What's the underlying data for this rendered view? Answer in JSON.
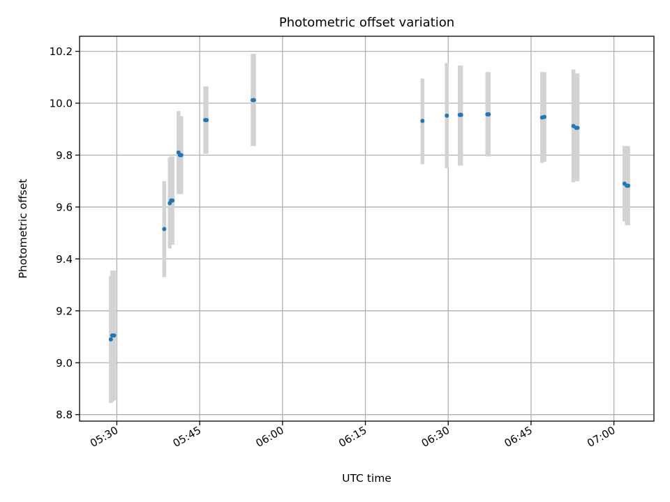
{
  "chart_data": {
    "type": "scatter",
    "title": "Photometric offset variation",
    "xlabel": "UTC time",
    "ylabel": "Photometric offset",
    "x_ticks": [
      "05:30",
      "05:45",
      "06:00",
      "06:15",
      "06:30",
      "06:45",
      "07:00"
    ],
    "y_ticks": [
      "8.8",
      "9.0",
      "9.2",
      "9.4",
      "9.6",
      "9.8",
      "10.0",
      "10.2"
    ],
    "xlim": [
      "05:23:15",
      "07:07:15"
    ],
    "ylim": [
      8.775,
      10.258
    ],
    "grid": true,
    "colors": {
      "point": "#1f77b4",
      "errorbar": "#d3d3d3"
    },
    "points": [
      {
        "x": "05:28:55",
        "y": 9.09,
        "ylow": 8.845,
        "yhigh": 9.335
      },
      {
        "x": "05:29:10",
        "y": 9.105,
        "ylow": 8.85,
        "yhigh": 9.355
      },
      {
        "x": "05:29:30",
        "y": 9.105,
        "ylow": 8.855,
        "yhigh": 9.355
      },
      {
        "x": "05:38:35",
        "y": 9.515,
        "ylow": 9.33,
        "yhigh": 9.7
      },
      {
        "x": "05:39:35",
        "y": 9.615,
        "ylow": 9.44,
        "yhigh": 9.79
      },
      {
        "x": "05:39:50",
        "y": 9.625,
        "ylow": 9.455,
        "yhigh": 9.795
      },
      {
        "x": "05:40:05",
        "y": 9.625,
        "ylow": 9.455,
        "yhigh": 9.795
      },
      {
        "x": "05:41:10",
        "y": 9.81,
        "ylow": 9.65,
        "yhigh": 9.97
      },
      {
        "x": "05:41:25",
        "y": 9.8,
        "ylow": 9.65,
        "yhigh": 9.95
      },
      {
        "x": "05:41:40",
        "y": 9.8,
        "ylow": 9.65,
        "yhigh": 9.95
      },
      {
        "x": "05:46:00",
        "y": 9.935,
        "ylow": 9.805,
        "yhigh": 10.065
      },
      {
        "x": "05:46:15",
        "y": 9.935,
        "ylow": 9.805,
        "yhigh": 10.065
      },
      {
        "x": "05:54:35",
        "y": 10.012,
        "ylow": 9.835,
        "yhigh": 10.19
      },
      {
        "x": "05:54:50",
        "y": 10.012,
        "ylow": 9.835,
        "yhigh": 10.19
      },
      {
        "x": "06:25:20",
        "y": 9.932,
        "ylow": 9.765,
        "yhigh": 10.095
      },
      {
        "x": "06:29:45",
        "y": 9.952,
        "ylow": 9.75,
        "yhigh": 10.155
      },
      {
        "x": "06:32:05",
        "y": 9.955,
        "ylow": 9.76,
        "yhigh": 10.145
      },
      {
        "x": "06:32:20",
        "y": 9.955,
        "ylow": 9.76,
        "yhigh": 10.145
      },
      {
        "x": "06:37:05",
        "y": 9.957,
        "ylow": 9.795,
        "yhigh": 10.12
      },
      {
        "x": "06:37:20",
        "y": 9.957,
        "ylow": 9.795,
        "yhigh": 10.12
      },
      {
        "x": "06:47:00",
        "y": 9.945,
        "ylow": 9.77,
        "yhigh": 10.12
      },
      {
        "x": "06:47:25",
        "y": 9.947,
        "ylow": 9.775,
        "yhigh": 10.12
      },
      {
        "x": "06:52:40",
        "y": 9.912,
        "ylow": 9.695,
        "yhigh": 10.13
      },
      {
        "x": "06:53:10",
        "y": 9.905,
        "ylow": 9.7,
        "yhigh": 10.115
      },
      {
        "x": "06:53:25",
        "y": 9.905,
        "ylow": 9.7,
        "yhigh": 10.115
      },
      {
        "x": "07:01:55",
        "y": 9.69,
        "ylow": 9.545,
        "yhigh": 9.835
      },
      {
        "x": "07:02:20",
        "y": 9.682,
        "ylow": 9.53,
        "yhigh": 9.835
      },
      {
        "x": "07:02:35",
        "y": 9.682,
        "ylow": 9.53,
        "yhigh": 9.835
      }
    ]
  }
}
